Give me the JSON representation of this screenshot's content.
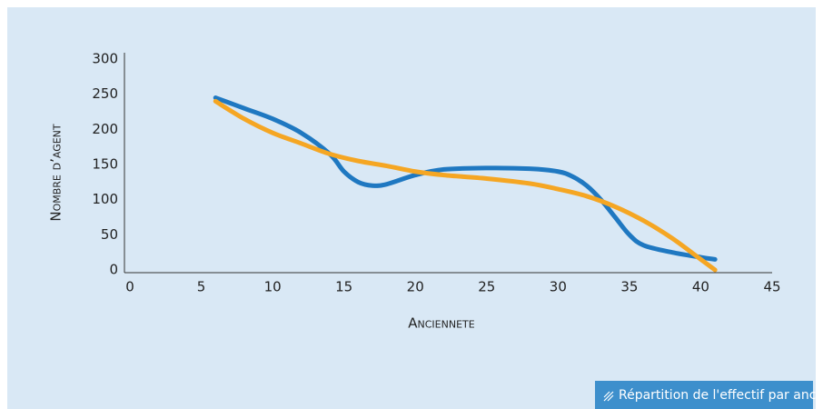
{
  "chart_data": {
    "type": "line",
    "xlabel": "Anciennete",
    "ylabel": "Nombre d’agent",
    "caption": "Répartition de l'effectif par anciennete.",
    "xlim": [
      0,
      45
    ],
    "xticks": [
      0,
      5,
      10,
      15,
      20,
      25,
      30,
      35,
      40,
      45
    ],
    "ylim": [
      0,
      300
    ],
    "yticks": [
      0,
      50,
      100,
      150,
      200,
      250,
      300
    ],
    "series": [
      {
        "color": "#1f78c1",
        "x": [
          6,
          8,
          10,
          12,
          14,
          15,
          16,
          17,
          18,
          20,
          22,
          25,
          28,
          30,
          31,
          32,
          33,
          34,
          35,
          36,
          38,
          40,
          41
        ],
        "values": [
          245,
          230,
          215,
          195,
          165,
          140,
          125,
          120,
          122,
          135,
          143,
          145,
          144,
          140,
          133,
          120,
          100,
          75,
          50,
          35,
          25,
          18,
          15
        ]
      },
      {
        "color": "#f5a623",
        "x": [
          6,
          8,
          10,
          12,
          14,
          16,
          18,
          20,
          22,
          25,
          28,
          30,
          32,
          34,
          36,
          38,
          40,
          41
        ],
        "values": [
          240,
          215,
          195,
          180,
          165,
          155,
          148,
          140,
          135,
          130,
          123,
          115,
          105,
          90,
          70,
          45,
          15,
          0
        ]
      }
    ]
  }
}
